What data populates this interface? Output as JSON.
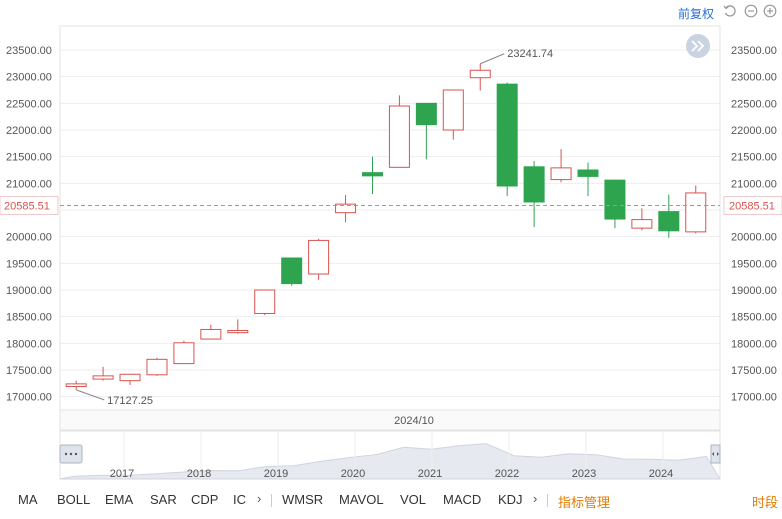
{
  "toolbar": {
    "adjust_label": "前复权",
    "icons": [
      "undo-icon",
      "zoom-out-icon",
      "zoom-in-icon"
    ]
  },
  "chart_data": {
    "type": "candlestick",
    "y_ticks": [
      17000,
      17500,
      18000,
      18500,
      19000,
      19500,
      20000,
      20500,
      21000,
      21500,
      22000,
      22500,
      23000,
      23500
    ],
    "y_tick_labels": [
      "17000.00",
      "17500.00",
      "18000.00",
      "18500.00",
      "19000.00",
      "19500.00",
      "20000.00",
      "20500.00",
      "21000.00",
      "21500.00",
      "22000.00",
      "22500.00",
      "23000.00",
      "23500.00"
    ],
    "ylim": [
      16750,
      23950
    ],
    "last_price": 20585.51,
    "last_price_label": "20585.51",
    "max_label": "23241.74",
    "min_label": "17127.25",
    "x_label": "2024/10",
    "candles": [
      {
        "open": 17190,
        "close": 17240,
        "high": 17300,
        "low": 17127.25
      },
      {
        "open": 17330,
        "close": 17390,
        "high": 17560,
        "low": 17300
      },
      {
        "open": 17300,
        "close": 17420,
        "high": 17430,
        "low": 17220
      },
      {
        "open": 17410,
        "close": 17700,
        "high": 17730,
        "low": 17390
      },
      {
        "open": 17620,
        "close": 18010,
        "high": 18050,
        "low": 17610
      },
      {
        "open": 18080,
        "close": 18260,
        "high": 18350,
        "low": 18070
      },
      {
        "open": 18200,
        "close": 18240,
        "high": 18450,
        "low": 18180
      },
      {
        "open": 18560,
        "close": 19000,
        "high": 19010,
        "low": 18530
      },
      {
        "open": 19600,
        "close": 19120,
        "high": 19610,
        "low": 19080
      },
      {
        "open": 19300,
        "close": 19930,
        "high": 19960,
        "low": 19190
      },
      {
        "open": 20450,
        "close": 20610,
        "high": 20780,
        "low": 20270
      },
      {
        "open": 21200,
        "close": 21140,
        "high": 21500,
        "low": 20800
      },
      {
        "open": 21300,
        "close": 22450,
        "high": 22650,
        "low": 21300
      },
      {
        "open": 22500,
        "close": 22100,
        "high": 22500,
        "low": 21450
      },
      {
        "open": 22000,
        "close": 22750,
        "high": 22760,
        "low": 21820
      },
      {
        "open": 22980,
        "close": 23120,
        "high": 23241.74,
        "low": 22740
      },
      {
        "open": 22860,
        "close": 20950,
        "high": 22890,
        "low": 20760
      },
      {
        "open": 21310,
        "close": 20650,
        "high": 21420,
        "low": 20180
      },
      {
        "open": 21070,
        "close": 21290,
        "high": 21640,
        "low": 21020
      },
      {
        "open": 21250,
        "close": 21130,
        "high": 21390,
        "low": 20760
      },
      {
        "open": 21060,
        "close": 20330,
        "high": 21070,
        "low": 20160
      },
      {
        "open": 20160,
        "close": 20320,
        "high": 20530,
        "low": 20120
      },
      {
        "open": 20470,
        "close": 20110,
        "high": 20790,
        "low": 19980
      },
      {
        "open": 20090,
        "close": 20820,
        "high": 20960,
        "low": 20060
      }
    ],
    "nav_years": [
      "2017",
      "2018",
      "2019",
      "2020",
      "2021",
      "2022",
      "2023",
      "2024"
    ],
    "colors": {
      "up": "#d9534f",
      "down": "#2ea44f",
      "price_line": "#e08a3a",
      "price_label_text": "#d9534f",
      "grid": "#eeeeee",
      "area": "#e6e9ef"
    }
  },
  "indicators": {
    "main": [
      "MA",
      "BOLL",
      "EMA",
      "SAR",
      "CDP",
      "IC"
    ],
    "sub": [
      "WMSR",
      "MAVOL",
      "VOL",
      "MACD",
      "KDJ"
    ],
    "manage_label": "指标管理",
    "period_label": "时段"
  }
}
